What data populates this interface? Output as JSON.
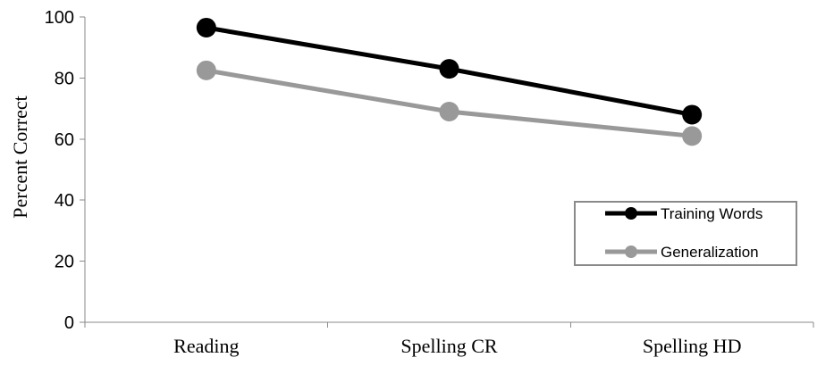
{
  "chart_data": {
    "type": "line",
    "categories": [
      "Reading",
      "Spelling CR",
      "Spelling HD"
    ],
    "series": [
      {
        "name": "Training Words",
        "values": [
          96.5,
          83,
          68
        ],
        "color": "#000000"
      },
      {
        "name": "Generalization",
        "values": [
          82.5,
          69,
          61
        ],
        "color": "#999999"
      }
    ],
    "title": "",
    "xlabel": "",
    "ylabel": "Percent Correct",
    "ylim": [
      0,
      100
    ],
    "yticks": [
      "0",
      "20",
      "40",
      "60",
      "80",
      "100"
    ],
    "grid": false,
    "legend_position": "bottom-right"
  }
}
